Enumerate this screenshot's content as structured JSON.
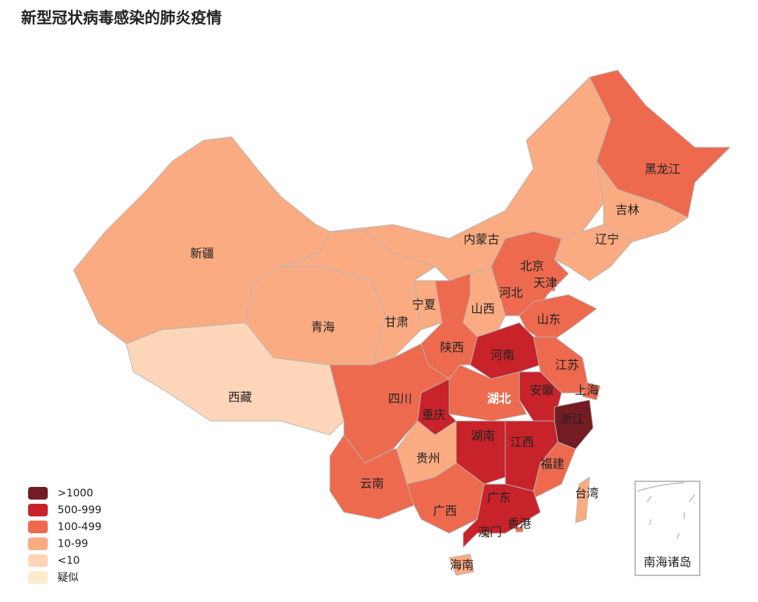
{
  "title": "新型冠状病毒感染的肺炎疫情",
  "legend": [
    {
      "label": ">1000",
      "color": "#731c22"
    },
    {
      "label": "500-999",
      "color": "#c8232b"
    },
    {
      "label": "100-499",
      "color": "#ed6a4f"
    },
    {
      "label": "10-99",
      "color": "#fbab82"
    },
    {
      "label": "<10",
      "color": "#fdd5b8"
    },
    {
      "label": "疑似",
      "color": "#fdebcf"
    }
  ],
  "provinces": [
    {
      "name": "新疆",
      "color": "#fbab82"
    },
    {
      "name": "西藏",
      "color": "#fdd5b8"
    },
    {
      "name": "青海",
      "color": "#fbab82"
    },
    {
      "name": "甘肃",
      "color": "#fbab82"
    },
    {
      "name": "宁夏",
      "color": "#fbab82"
    },
    {
      "name": "内蒙古",
      "color": "#fbab82"
    },
    {
      "name": "黑龙江",
      "color": "#ed6a4f"
    },
    {
      "name": "吉林",
      "color": "#fbab82"
    },
    {
      "name": "辽宁",
      "color": "#fbab82"
    },
    {
      "name": "北京",
      "color": "#ed6a4f"
    },
    {
      "name": "天津",
      "color": "#ed6a4f"
    },
    {
      "name": "河北",
      "color": "#ed6a4f"
    },
    {
      "name": "山西",
      "color": "#fbab82"
    },
    {
      "name": "山东",
      "color": "#ed6a4f"
    },
    {
      "name": "陕西",
      "color": "#ed6a4f"
    },
    {
      "name": "河南",
      "color": "#c8232b"
    },
    {
      "name": "江苏",
      "color": "#ed6a4f"
    },
    {
      "name": "安徽",
      "color": "#c8232b"
    },
    {
      "name": "上海",
      "color": "#ed6a4f"
    },
    {
      "name": "湖北",
      "color": "#731c22"
    },
    {
      "name": "四川",
      "color": "#ed6a4f"
    },
    {
      "name": "重庆",
      "color": "#ed6a4f"
    },
    {
      "name": "浙江",
      "color": "#c8232b"
    },
    {
      "name": "湖南",
      "color": "#c8232b"
    },
    {
      "name": "江西",
      "color": "#c8232b"
    },
    {
      "name": "福建",
      "color": "#ed6a4f"
    },
    {
      "name": "贵州",
      "color": "#fbab82"
    },
    {
      "name": "云南",
      "color": "#ed6a4f"
    },
    {
      "name": "广西",
      "color": "#ed6a4f"
    },
    {
      "name": "广东",
      "color": "#c8232b"
    },
    {
      "name": "台湾",
      "color": "#fbab82"
    },
    {
      "name": "香港",
      "color": "#ed6a4f"
    },
    {
      "name": "澳门",
      "color": "#fbab82"
    },
    {
      "name": "海南",
      "color": "#fbab82"
    }
  ],
  "inset": "南海诸岛"
}
